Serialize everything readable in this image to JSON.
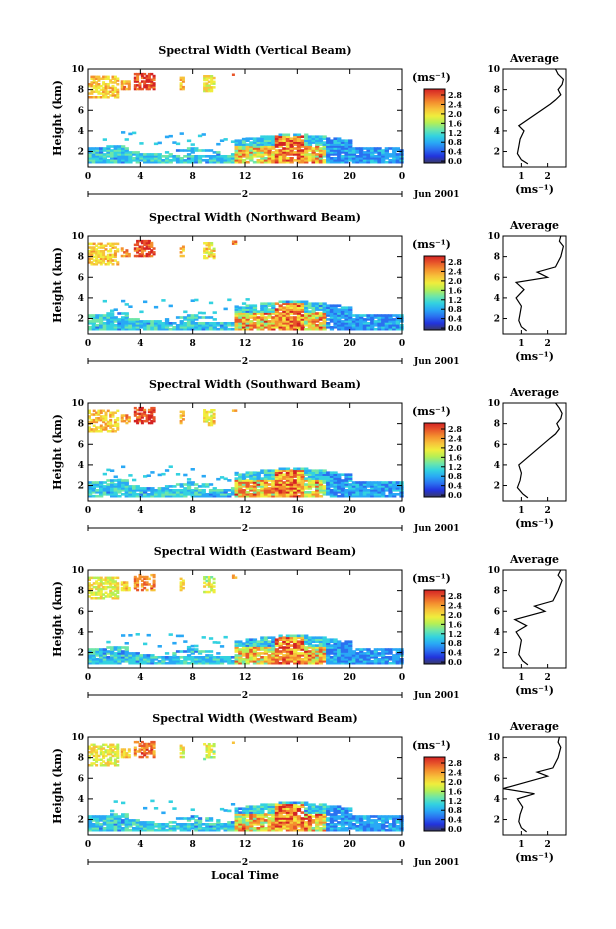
{
  "chart_data": {
    "type": "heatmap",
    "panel_titles": [
      "Spectral Width (Vertical Beam)",
      "Spectral Width (Northward Beam)",
      "Spectral Width (Southward Beam)",
      "Spectral Width (Eastward Beam)",
      "Spectral Width (Westward Beam)"
    ],
    "ylabel": "Height (km)",
    "xlabel": "Local Time",
    "y_ticks": [
      "2",
      "4",
      "6",
      "8",
      "10"
    ],
    "x_ticks": [
      "0",
      "4",
      "8",
      "12",
      "16",
      "20",
      "0"
    ],
    "date_label": "Jun 2001",
    "day_label": "2",
    "colorbar": {
      "unit": "(ms⁻¹)",
      "ticks": [
        "2.8",
        "2.4",
        "2.0",
        "1.6",
        "1.2",
        "0.8",
        "0.4",
        "0.0"
      ],
      "colors": [
        "#3a3a66",
        "#2233dd",
        "#2a70f0",
        "#29a8f5",
        "#33d2e0",
        "#6ee6a8",
        "#b5ef55",
        "#f0ed3c",
        "#f7c23a",
        "#f4902e",
        "#e8562a",
        "#d42323"
      ]
    },
    "average_title": "Average",
    "average_xlabel": "(ms⁻¹)",
    "average_xticks": [
      "1",
      "2"
    ],
    "average_yticks": [
      "2",
      "4",
      "6",
      "8",
      "10"
    ],
    "average_profiles": [
      {
        "name": "Vertical",
        "height_km": [
          0.8,
          1.2,
          1.8,
          2.5,
          3.2,
          4.0,
          4.5,
          6.6,
          7.0,
          7.5,
          8.0,
          8.5,
          9.0,
          9.5,
          10.0
        ],
        "width_ms": [
          1.25,
          1.0,
          0.85,
          0.9,
          0.95,
          1.1,
          0.9,
          2.1,
          2.3,
          2.5,
          2.4,
          2.55,
          2.6,
          2.4,
          2.3
        ]
      },
      {
        "name": "Northward",
        "height_km": [
          0.8,
          1.2,
          1.8,
          2.5,
          3.2,
          4.0,
          4.8,
          5.5,
          6.0,
          6.5,
          7.0,
          8.0,
          9.0,
          9.5,
          10.0
        ],
        "width_ms": [
          1.2,
          1.0,
          0.9,
          0.95,
          1.0,
          0.8,
          1.1,
          0.8,
          2.0,
          1.6,
          2.3,
          2.5,
          2.6,
          2.45,
          2.5
        ]
      },
      {
        "name": "Southward",
        "height_km": [
          0.8,
          1.2,
          1.8,
          2.5,
          3.2,
          4.0,
          6.6,
          7.0,
          7.5,
          8.0,
          8.5,
          9.0,
          9.5,
          10.0
        ],
        "width_ms": [
          1.25,
          1.05,
          0.85,
          0.95,
          1.0,
          0.9,
          2.1,
          2.3,
          2.45,
          2.35,
          2.5,
          2.55,
          2.45,
          2.3
        ]
      },
      {
        "name": "Eastward",
        "height_km": [
          0.8,
          1.2,
          1.8,
          2.5,
          3.2,
          4.0,
          4.6,
          5.2,
          6.0,
          6.5,
          7.0,
          8.0,
          9.0,
          9.5,
          10.0
        ],
        "width_ms": [
          1.25,
          1.05,
          0.9,
          0.95,
          1.0,
          0.8,
          1.2,
          0.75,
          1.9,
          1.5,
          2.2,
          2.4,
          2.55,
          2.4,
          2.5
        ]
      },
      {
        "name": "Westward",
        "height_km": [
          0.8,
          1.2,
          1.8,
          2.5,
          3.2,
          4.0,
          4.5,
          5.0,
          6.2,
          6.6,
          7.0,
          8.0,
          9.0,
          9.5,
          10.0
        ],
        "width_ms": [
          1.2,
          1.0,
          0.9,
          0.95,
          1.05,
          0.85,
          1.5,
          0.3,
          2.0,
          1.6,
          2.2,
          2.4,
          2.5,
          2.4,
          2.45
        ]
      }
    ]
  }
}
